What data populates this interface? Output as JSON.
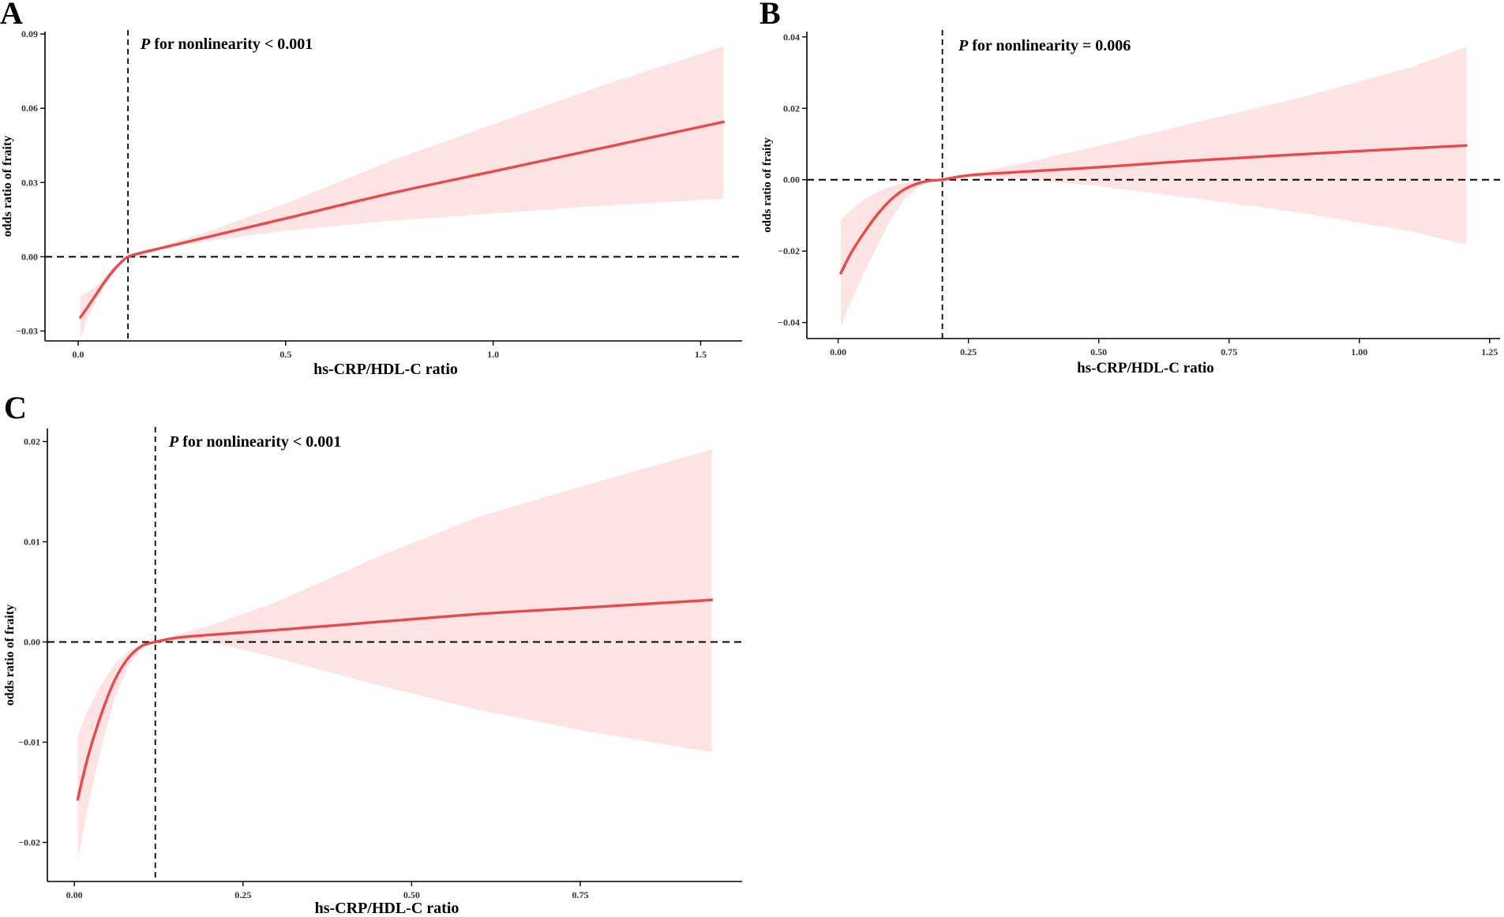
{
  "figure": {
    "panels": [
      "A",
      "B",
      "C"
    ]
  },
  "chart_data": [
    {
      "panel": "A",
      "type": "line",
      "title": "",
      "annotation": {
        "p_symbol": "P",
        "text": " for nonlinearity < 0.001"
      },
      "xlabel": "hs-CRP/HDL-C ratio",
      "ylabel": "odds ratio of fraity",
      "xlim": [
        -0.08,
        1.6
      ],
      "ylim": [
        -0.034,
        0.091
      ],
      "xticks": [
        0.0,
        0.5,
        1.0,
        1.5
      ],
      "xtick_labels": [
        "0.0",
        "0.5",
        "1.0",
        "1.5"
      ],
      "yticks": [
        -0.03,
        0.0,
        0.03,
        0.06,
        0.09
      ],
      "ytick_labels": [
        "−0.03",
        "0.00",
        "0.03",
        "0.06",
        "0.09"
      ],
      "reference_x": 0.12,
      "reference_y": 0.0,
      "series": [
        {
          "name": "estimate",
          "x": [
            0.005,
            0.02,
            0.04,
            0.06,
            0.08,
            0.1,
            0.12,
            0.15,
            0.2,
            0.3,
            0.5,
            0.75,
            1.0,
            1.25,
            1.555
          ],
          "y": [
            -0.0245,
            -0.021,
            -0.016,
            -0.011,
            -0.0065,
            -0.0028,
            0.0,
            0.0015,
            0.0035,
            0.0075,
            0.0155,
            0.0255,
            0.0345,
            0.0435,
            0.0545
          ],
          "lower": [
            -0.033,
            -0.026,
            -0.019,
            -0.013,
            -0.008,
            -0.0035,
            0.0,
            0.0012,
            0.003,
            0.006,
            0.0105,
            0.0145,
            0.0175,
            0.0205,
            0.0235
          ],
          "upper": [
            -0.016,
            -0.0145,
            -0.0125,
            -0.009,
            -0.005,
            -0.002,
            0.0,
            0.002,
            0.0045,
            0.0095,
            0.0215,
            0.0385,
            0.0535,
            0.0685,
            0.085
          ]
        }
      ]
    },
    {
      "panel": "B",
      "type": "line",
      "title": "",
      "annotation": {
        "p_symbol": "P",
        "text": " for nonlinearity = 0.006"
      },
      "xlabel": "hs-CRP/HDL-C ratio",
      "ylabel": "odds ratio of fraity",
      "xlim": [
        -0.06,
        1.27
      ],
      "ylim": [
        -0.0445,
        0.0415
      ],
      "xticks": [
        0.0,
        0.25,
        0.5,
        0.75,
        1.0,
        1.25
      ],
      "xtick_labels": [
        "0.00",
        "0.25",
        "0.50",
        "0.75",
        "1.00",
        "1.25"
      ],
      "yticks": [
        -0.04,
        -0.02,
        0.0,
        0.02,
        0.04
      ],
      "ytick_labels": [
        "−0.04",
        "−0.02",
        "0.00",
        "0.02",
        "0.04"
      ],
      "reference_x": 0.2,
      "reference_y": 0.0,
      "series": [
        {
          "name": "estimate",
          "x": [
            0.005,
            0.025,
            0.05,
            0.075,
            0.1,
            0.125,
            0.15,
            0.175,
            0.2,
            0.25,
            0.35,
            0.5,
            0.7,
            0.9,
            1.1,
            1.205
          ],
          "y": [
            -0.0262,
            -0.0205,
            -0.0148,
            -0.0098,
            -0.0058,
            -0.0029,
            -0.0012,
            -0.0003,
            0.0,
            0.0012,
            0.0022,
            0.0035,
            0.0055,
            0.0072,
            0.0088,
            0.0096
          ],
          "lower": [
            -0.0412,
            -0.034,
            -0.026,
            -0.0185,
            -0.0115,
            -0.006,
            -0.0025,
            -0.0006,
            0.0,
            0.0008,
            0.0002,
            -0.0018,
            -0.0055,
            -0.0095,
            -0.0145,
            -0.0182
          ],
          "upper": [
            -0.0112,
            -0.0085,
            -0.0055,
            -0.0035,
            -0.002,
            -0.001,
            -0.0003,
            0.0,
            0.0,
            0.0016,
            0.0045,
            0.0095,
            0.0165,
            0.0235,
            0.0315,
            0.0372
          ]
        }
      ]
    },
    {
      "panel": "C",
      "type": "line",
      "title": "",
      "annotation": {
        "p_symbol": "P",
        "text": " for nonlinearity < 0.001"
      },
      "xlabel": "hs-CRP/HDL-C ratio",
      "ylabel": "odds ratio of fraity",
      "xlim": [
        -0.04,
        0.99
      ],
      "ylim": [
        -0.0239,
        0.0213
      ],
      "xticks": [
        0.0,
        0.25,
        0.5,
        0.75
      ],
      "xtick_labels": [
        "0.00",
        "0.25",
        "0.50",
        "0.75"
      ],
      "yticks": [
        -0.02,
        -0.01,
        0.0,
        0.01,
        0.02
      ],
      "ytick_labels": [
        "−0.02",
        "−0.01",
        "0.00",
        "0.01",
        "0.02"
      ],
      "reference_x": 0.12,
      "reference_y": 0.0,
      "series": [
        {
          "name": "estimate",
          "x": [
            0.005,
            0.02,
            0.04,
            0.06,
            0.08,
            0.1,
            0.12,
            0.15,
            0.2,
            0.3,
            0.45,
            0.6,
            0.75,
            0.945
          ],
          "y": [
            -0.0157,
            -0.0115,
            -0.0072,
            -0.0038,
            -0.0016,
            -0.0004,
            0.0,
            0.0004,
            0.0007,
            0.0012,
            0.002,
            0.0028,
            0.0034,
            0.0042
          ],
          "lower": [
            -0.0218,
            -0.0165,
            -0.0105,
            -0.0056,
            -0.0024,
            -0.0006,
            0.0,
            0.0002,
            0.0,
            -0.0016,
            -0.0043,
            -0.0068,
            -0.0088,
            -0.011
          ],
          "upper": [
            -0.0094,
            -0.0068,
            -0.0042,
            -0.0022,
            -0.0009,
            -0.0002,
            0.0,
            0.0007,
            0.0016,
            0.004,
            0.0085,
            0.0125,
            0.0155,
            0.0192
          ]
        }
      ]
    }
  ]
}
